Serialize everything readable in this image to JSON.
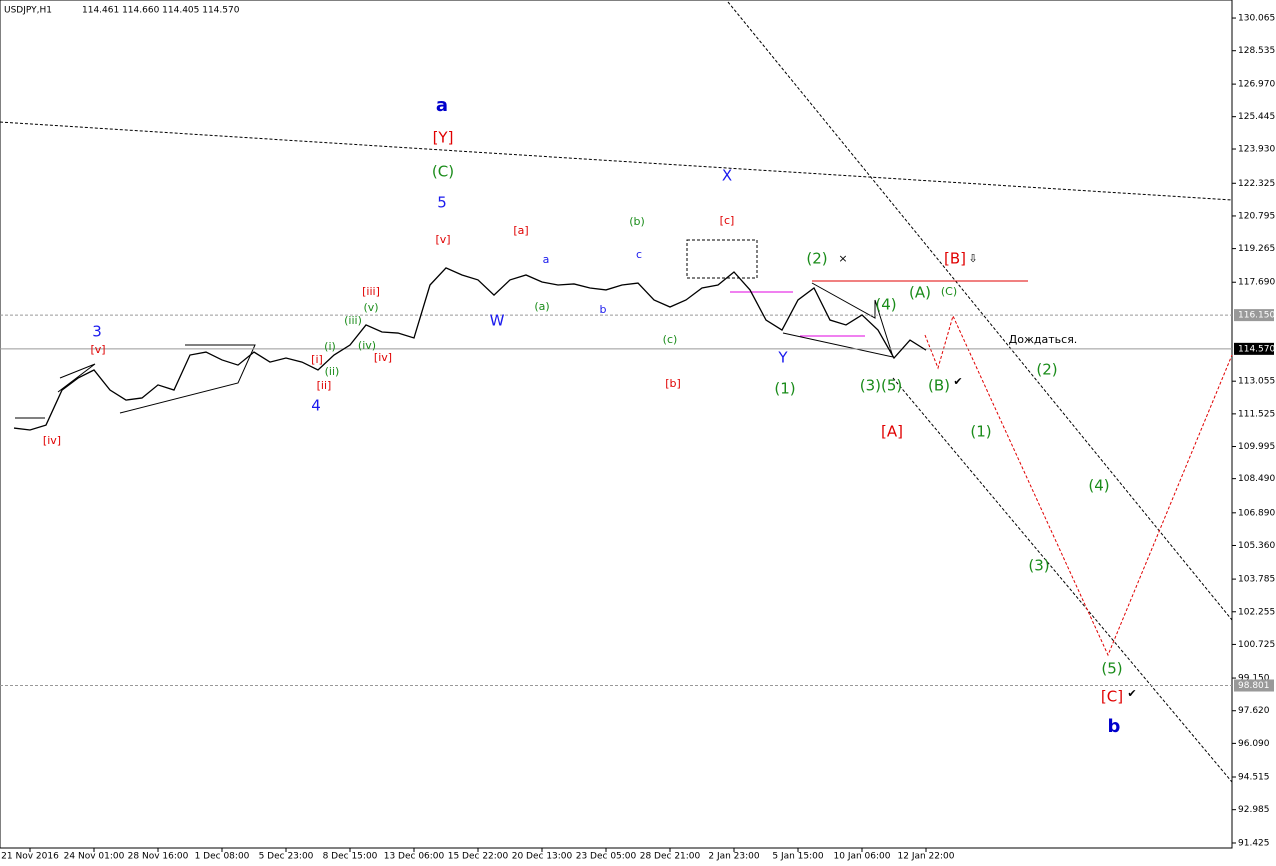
{
  "chart_data": {
    "type": "line",
    "title": "USDJPY,H1",
    "subtitle": "114.461 114.660 114.405 114.570",
    "categories": [
      null,
      "21 Nov 2016",
      null,
      null,
      null,
      "24 Nov 01:00",
      null,
      null,
      null,
      "28 Nov 16:00",
      null,
      null,
      null,
      "1 Dec 08:00",
      null,
      null,
      null,
      "5 Dec 23:00",
      null,
      null,
      null,
      "8 Dec 15:00",
      null,
      null,
      null,
      "13 Dec 06:00",
      null,
      null,
      null,
      "15 Dec 22:00",
      null,
      null,
      null,
      "20 Dec 13:00",
      null,
      null,
      null,
      "23 Dec 05:00",
      null,
      null,
      null,
      "28 Dec 21:00",
      null,
      null,
      null,
      "2 Jan 23:00",
      null,
      null,
      null,
      "5 Jan 15:00",
      null,
      null,
      null,
      "10 Jan 06:00",
      null,
      null,
      null,
      "12 Jan 22:00",
      null,
      null,
      null,
      null,
      null,
      null,
      null,
      null,
      null,
      null,
      null,
      null,
      null,
      null,
      null,
      null,
      null,
      null,
      null
    ],
    "series": [
      {
        "name": "USDJPY",
        "color": "#000000",
        "values": [
          110.86,
          110.77,
          111.0,
          112.64,
          113.2,
          113.58,
          112.64,
          112.17,
          112.27,
          112.88,
          112.64,
          114.28,
          114.42,
          114.05,
          113.81,
          114.42,
          113.95,
          114.14,
          113.95,
          113.58,
          114.28,
          114.75,
          115.69,
          115.36,
          115.31,
          115.08,
          117.56,
          118.36,
          118.03,
          117.8,
          117.09,
          117.8,
          118.03,
          117.7,
          117.56,
          117.61,
          117.42,
          117.33,
          117.56,
          117.65,
          116.86,
          116.53,
          116.86,
          117.42,
          117.56,
          118.17,
          117.33,
          115.92,
          115.45,
          116.86,
          117.42,
          115.92,
          115.69,
          116.16,
          115.45,
          114.14,
          114.98,
          114.51,
          null,
          null,
          null,
          null,
          null,
          null,
          null,
          null,
          null,
          null,
          null,
          null,
          null,
          null,
          null,
          null,
          null,
          null,
          null
        ]
      }
    ],
    "ylim": [
      91.19,
      130.91
    ],
    "yticks": [
      130.065,
      128.535,
      {
        "value": 126.97,
        "label": "126.970"
      },
      125.445,
      {
        "value": 123.93,
        "label": "123.930"
      },
      122.325,
      120.795,
      119.265,
      {
        "value": 117.69,
        "label": "117.690"
      },
      113.055,
      111.525,
      109.995,
      {
        "value": 108.49,
        "label": "108.490"
      },
      {
        "value": 106.89,
        "label": "106.890"
      },
      {
        "value": 105.36,
        "label": "105.360"
      },
      103.785,
      102.255,
      100.725,
      {
        "value": 99.15,
        "label": "99.150"
      },
      {
        "value": 97.62,
        "label": "97.620"
      },
      {
        "value": 96.09,
        "label": "96.090"
      },
      94.515,
      92.985,
      91.425
    ],
    "hlines": [
      {
        "value": 116.15,
        "label": "116.150",
        "style": "dashed"
      },
      {
        "value": 114.57,
        "label": "114.570",
        "style": "solid"
      },
      {
        "value": 98.801,
        "label": "98.801",
        "style": "dashed"
      }
    ],
    "grid": false,
    "annotations": [
      {
        "text": "a",
        "color": "#0000cc"
      },
      {
        "text": "[Y]",
        "color": "#e00000"
      },
      {
        "text": "(C)",
        "color": "#1a8c1a"
      },
      {
        "text": "5",
        "color": "#1a1aee"
      },
      {
        "text": "[v]",
        "color": "#e00000"
      },
      {
        "text": "X",
        "color": "#1a1aee"
      },
      {
        "text": "[c]",
        "color": "#e00000"
      },
      {
        "text": "(b)",
        "color": "#1a8c1a"
      },
      {
        "text": "[a]",
        "color": "#e00000"
      },
      {
        "text": "a",
        "color": "#1a1aee"
      },
      {
        "text": "c",
        "color": "#1a1aee"
      },
      {
        "text": "b",
        "color": "#1a1aee"
      },
      {
        "text": "W",
        "color": "#1a1aee"
      },
      {
        "text": "(a)",
        "color": "#1a8c1a"
      },
      {
        "text": "(c)",
        "color": "#1a8c1a"
      },
      {
        "text": "[b]",
        "color": "#e00000"
      },
      {
        "text": "Y",
        "color": "#1a1aee"
      },
      {
        "text": "(1)",
        "color": "#1a8c1a"
      },
      {
        "text": "(2)",
        "color": "#1a8c1a"
      },
      {
        "text": "(4)",
        "color": "#1a8c1a"
      },
      {
        "text": "(3)(5)",
        "color": "#1a8c1a"
      },
      {
        "text": "[A]",
        "color": "#e00000"
      },
      {
        "text": "(A)",
        "color": "#1a8c1a"
      },
      {
        "text": "(C)",
        "color": "#1a8c1a"
      },
      {
        "text": "(B)",
        "color": "#1a8c1a"
      },
      {
        "text": "[B]",
        "color": "#e00000"
      },
      {
        "text": "Дождаться.",
        "color": "#000000"
      },
      {
        "text": "(2)",
        "color": "#1a8c1a"
      },
      {
        "text": "(1)",
        "color": "#1a8c1a"
      },
      {
        "text": "(4)",
        "color": "#1a8c1a"
      },
      {
        "text": "(3)",
        "color": "#1a8c1a"
      },
      {
        "text": "(5)",
        "color": "#1a8c1a"
      },
      {
        "text": "[C]",
        "color": "#e00000"
      },
      {
        "text": "b",
        "color": "#0000cc"
      },
      {
        "text": "3",
        "color": "#1a1aee"
      },
      {
        "text": "[v]",
        "color": "#e00000"
      },
      {
        "text": "[iv]",
        "color": "#e00000"
      },
      {
        "text": "4",
        "color": "#1a1aee"
      },
      {
        "text": "[iii]",
        "color": "#e00000"
      },
      {
        "text": "(v)",
        "color": "#1a8c1a"
      },
      {
        "text": "(iii)",
        "color": "#1a8c1a"
      },
      {
        "text": "(i)",
        "color": "#1a8c1a"
      },
      {
        "text": "[i]",
        "color": "#e00000"
      },
      {
        "text": "(iv)",
        "color": "#1a8c1a"
      },
      {
        "text": "[iv]",
        "color": "#e00000"
      },
      {
        "text": "(ii)",
        "color": "#1a8c1a"
      },
      {
        "text": "[ii]",
        "color": "#e00000"
      },
      {
        "text": "✔",
        "color": "#000000"
      },
      {
        "text": "✔",
        "color": "#000000"
      },
      {
        "text": "×",
        "color": "#000000"
      },
      {
        "text": "⇩",
        "color": "#000000"
      }
    ]
  }
}
